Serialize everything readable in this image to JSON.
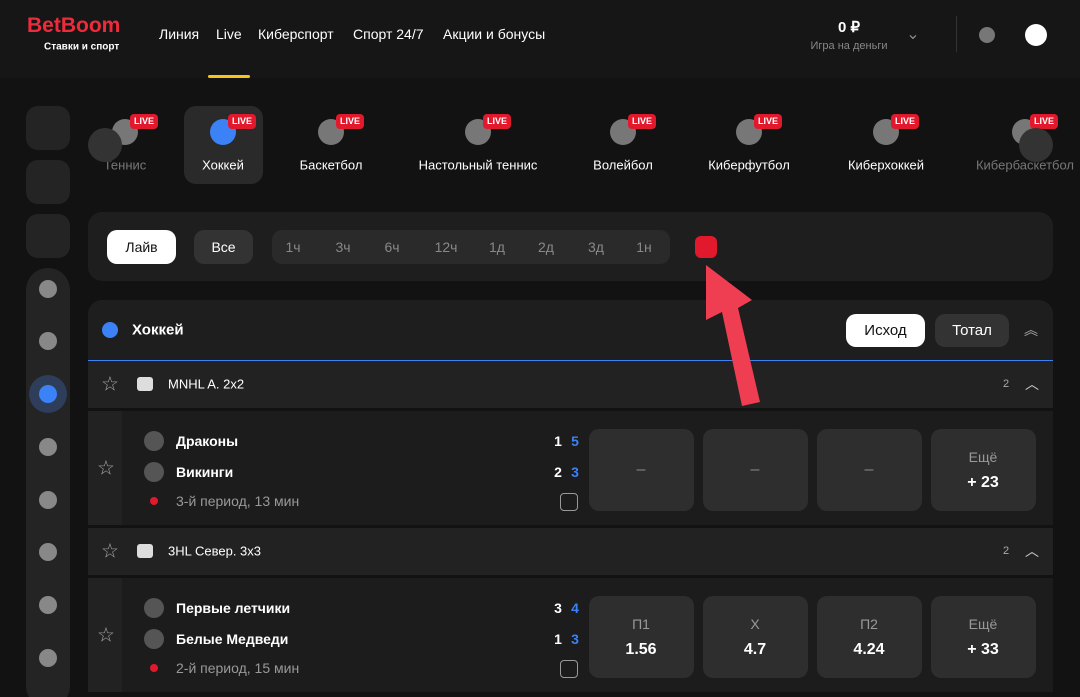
{
  "header": {
    "logo": "BetBoom",
    "logo_sub": "Ставки и спорт",
    "nav": [
      "Линия",
      "Live",
      "Киберспорт",
      "Спорт 24/7",
      "Акции и бонусы"
    ],
    "balance": "0 ₽",
    "balance_mode": "Игра на деньги"
  },
  "sports": {
    "badge": "LIVE",
    "items": [
      "Теннис",
      "Хоккей",
      "Баскетбол",
      "Настольный теннис",
      "Волейбол",
      "Киберфутбол",
      "Киберхоккей",
      "Кибербаскетбол"
    ]
  },
  "filters": {
    "modes": [
      "Лайв",
      "Все"
    ],
    "periods": [
      "1ч",
      "3ч",
      "6ч",
      "12ч",
      "1д",
      "2д",
      "3д",
      "1н"
    ]
  },
  "section": {
    "title": "Хоккей",
    "tabs": [
      "Исход",
      "Тотал"
    ]
  },
  "leagues": [
    {
      "name": "MNHL A. 2x2",
      "count": "2",
      "match": {
        "teams": [
          {
            "name": "Драконы",
            "score": "1",
            "period_score": "5"
          },
          {
            "name": "Викинги",
            "score": "2",
            "period_score": "3"
          }
        ],
        "status": "3-й период, 13 мин",
        "odds": [
          {
            "label": null,
            "value": "–"
          },
          {
            "label": null,
            "value": "–"
          },
          {
            "label": null,
            "value": "–"
          }
        ],
        "more": {
          "label": "Ещё",
          "value": "+ 23"
        }
      }
    },
    {
      "name": "3HL Север. 3x3",
      "count": "2",
      "match": {
        "teams": [
          {
            "name": "Первые летчики",
            "score": "3",
            "period_score": "4"
          },
          {
            "name": "Белые Медведи",
            "score": "1",
            "period_score": "3"
          }
        ],
        "status": "2-й период, 15 мин",
        "odds": [
          {
            "label": "П1",
            "value": "1.56"
          },
          {
            "label": "X",
            "value": "4.7"
          },
          {
            "label": "П2",
            "value": "4.24"
          }
        ],
        "more": {
          "label": "Ещё",
          "value": "+ 33"
        }
      }
    }
  ]
}
